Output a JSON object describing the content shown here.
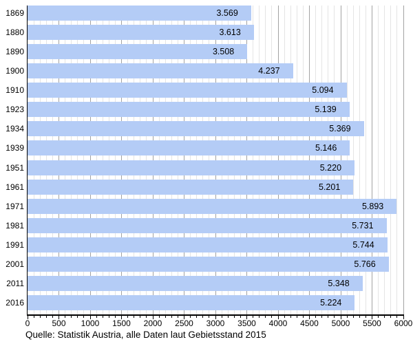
{
  "chart_data": {
    "type": "bar",
    "orientation": "horizontal",
    "title": "",
    "xlabel": "",
    "ylabel": "",
    "categories": [
      "1869",
      "1880",
      "1890",
      "1900",
      "1910",
      "1923",
      "1934",
      "1939",
      "1951",
      "1961",
      "1971",
      "1981",
      "1991",
      "2001",
      "2011",
      "2016"
    ],
    "values": [
      3569,
      3613,
      3508,
      4237,
      5094,
      5139,
      5369,
      5146,
      5220,
      5201,
      5893,
      5731,
      5744,
      5766,
      5348,
      5224
    ],
    "value_labels": [
      "3.569",
      "3.613",
      "3.508",
      "4.237",
      "5.094",
      "5.139",
      "5.369",
      "5.146",
      "5.220",
      "5.201",
      "5.893",
      "5.731",
      "5.744",
      "5.766",
      "5.348",
      "5.224"
    ],
    "caption": "Quelle: Statistik Austria, alle Daten laut Gebietsstand 2015",
    "axis": {
      "xlim": [
        0,
        6000
      ],
      "minor_step": 100,
      "major_step": 500,
      "tick_labels": [
        "0",
        "500",
        "1000",
        "1500",
        "2000",
        "2500",
        "3000",
        "3500",
        "4000",
        "4500",
        "5000",
        "5500",
        "6000"
      ]
    },
    "legend": null,
    "grid": "vertical, minor every 100 (light), major every 500 (dark), behind bars",
    "colors": {
      "bar_fill": "#b4ccf6",
      "grid_minor": "#e4e4e4",
      "grid_major": "#a2a2a2",
      "axis": "#000000",
      "text": "#000000",
      "background": "#ffffff"
    }
  }
}
